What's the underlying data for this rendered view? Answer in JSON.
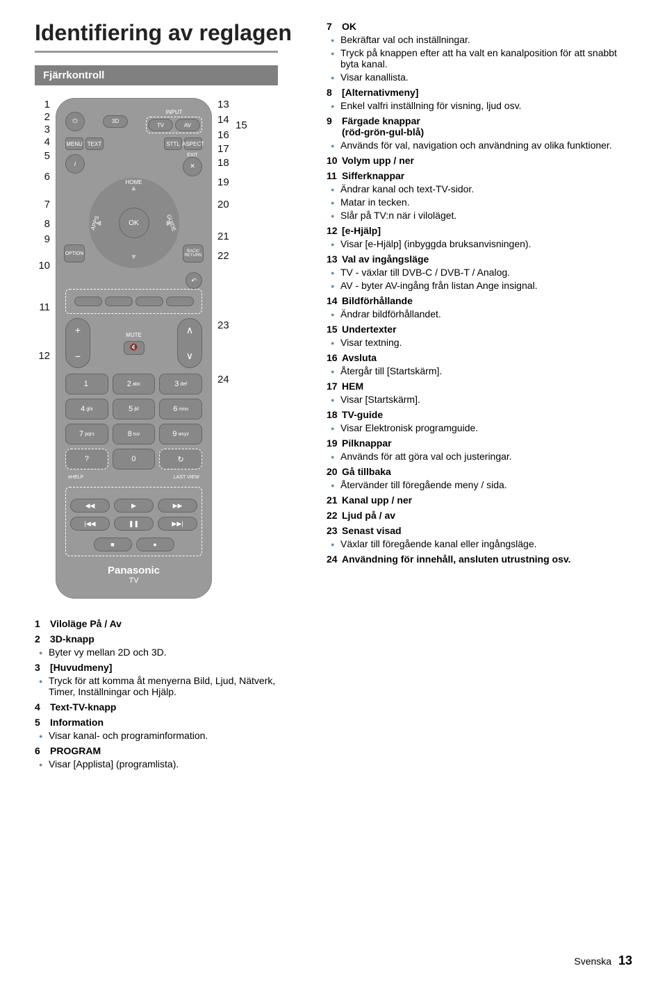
{
  "title": "Identifiering av reglagen",
  "section_header": "Fjärrkontroll",
  "remote": {
    "input_label": "INPUT",
    "tv": "TV",
    "av": "AV",
    "menu": "MENU",
    "text": "TEXT",
    "sttl": "STTL",
    "aspect": "ASPECT",
    "exit": "EXIT",
    "home": "HOME",
    "apps": "APPS",
    "guide": "GUIDE",
    "ok": "OK",
    "option": "OPTION",
    "back": "BACK/\nRETURN",
    "mute": "MUTE",
    "ehelp": "eHELP",
    "lastview": "LAST VIEW",
    "brand": "Panasonic",
    "brand_sub": "TV",
    "keys": [
      {
        "n": "1",
        "s": ""
      },
      {
        "n": "2",
        "s": "abc"
      },
      {
        "n": "3",
        "s": "def"
      },
      {
        "n": "4",
        "s": "ghi"
      },
      {
        "n": "5",
        "s": "jkl"
      },
      {
        "n": "6",
        "s": "mno"
      },
      {
        "n": "7",
        "s": "pqrs"
      },
      {
        "n": "8",
        "s": "tuv"
      },
      {
        "n": "9",
        "s": "wxyz"
      }
    ]
  },
  "nums_left": [
    "1",
    "2",
    "3",
    "4",
    "5",
    "6",
    "7",
    "8",
    "9",
    "10",
    "11",
    "12"
  ],
  "nums_right": [
    "13",
    "14",
    "15",
    "16",
    "17",
    "18",
    "19",
    "20",
    "21",
    "22",
    "23",
    "24"
  ],
  "left_desc": [
    {
      "n": "1",
      "t": "Viloläge På / Av",
      "subs": []
    },
    {
      "n": "2",
      "t": "3D-knapp",
      "subs": [
        "Byter vy mellan 2D och 3D."
      ]
    },
    {
      "n": "3",
      "t": "[Huvudmeny]",
      "subs": [
        "Tryck för att komma åt menyerna Bild, Ljud, Nätverk, Timer, Inställningar och Hjälp."
      ]
    },
    {
      "n": "4",
      "t": "Text-TV-knapp",
      "subs": []
    },
    {
      "n": "5",
      "t": "Information",
      "subs": [
        "Visar kanal- och programinformation."
      ]
    },
    {
      "n": "6",
      "t": "PROGRAM",
      "subs": [
        "Visar [Applista] (programlista)."
      ]
    }
  ],
  "right_desc": [
    {
      "n": "7",
      "t": "OK",
      "subs": [
        "Bekräftar val och inställningar.",
        "Tryck på knappen efter att ha valt en kanalposition för att snabbt byta kanal.",
        "Visar kanallista."
      ]
    },
    {
      "n": "8",
      "t": "[Alternativmeny]",
      "subs": [
        "Enkel valfri inställning för visning, ljud osv."
      ]
    },
    {
      "n": "9",
      "t": "Färgade knappar",
      "inline": "(röd-grön-gul-blå)",
      "subs": [
        "Används för val, navigation och användning av olika funktioner."
      ]
    },
    {
      "n": "10",
      "t": "Volym upp / ner",
      "subs": []
    },
    {
      "n": "11",
      "t": "Sifferknappar",
      "subs": [
        "Ändrar kanal och text-TV-sidor.",
        "Matar in tecken.",
        "Slår på TV:n när i viloläget."
      ]
    },
    {
      "n": "12",
      "t": "[e-Hjälp]",
      "subs": [
        "Visar [e-Hjälp] (inbyggda bruksanvisningen)."
      ]
    },
    {
      "n": "13",
      "t": "Val av ingångsläge",
      "subs": [
        "TV - växlar till DVB-C / DVB-T / Analog.",
        "AV - byter AV-ingång från listan Ange insignal."
      ]
    },
    {
      "n": "14",
      "t": "Bildförhållande",
      "subs": [
        "Ändrar bildförhållandet."
      ]
    },
    {
      "n": "15",
      "t": "Undertexter",
      "subs": [
        "Visar textning."
      ]
    },
    {
      "n": "16",
      "t": "Avsluta",
      "subs": [
        "Återgår till [Startskärm]."
      ]
    },
    {
      "n": "17",
      "t": "HEM",
      "subs": [
        "Visar [Startskärm]."
      ]
    },
    {
      "n": "18",
      "t": "TV-guide",
      "subs": [
        "Visar Elektronisk programguide."
      ]
    },
    {
      "n": "19",
      "t": "Pilknappar",
      "subs": [
        "Används för att göra val och justeringar."
      ]
    },
    {
      "n": "20",
      "t": "Gå tillbaka",
      "subs": [
        "Återvänder till föregående meny / sida."
      ]
    },
    {
      "n": "21",
      "t": "Kanal upp / ner",
      "subs": []
    },
    {
      "n": "22",
      "t": "Ljud på / av",
      "subs": []
    },
    {
      "n": "23",
      "t": "Senast visad",
      "subs": [
        "Växlar till föregående kanal eller ingångsläge."
      ]
    },
    {
      "n": "24",
      "t": "Användning för innehåll, ansluten utrustning osv.",
      "subs": []
    }
  ],
  "footer_lang": "Svenska",
  "footer_page": "13",
  "colors": {
    "bullet": "#6a8aa8",
    "remote_bg": "#9a9a9a",
    "section_bg": "#808080"
  }
}
